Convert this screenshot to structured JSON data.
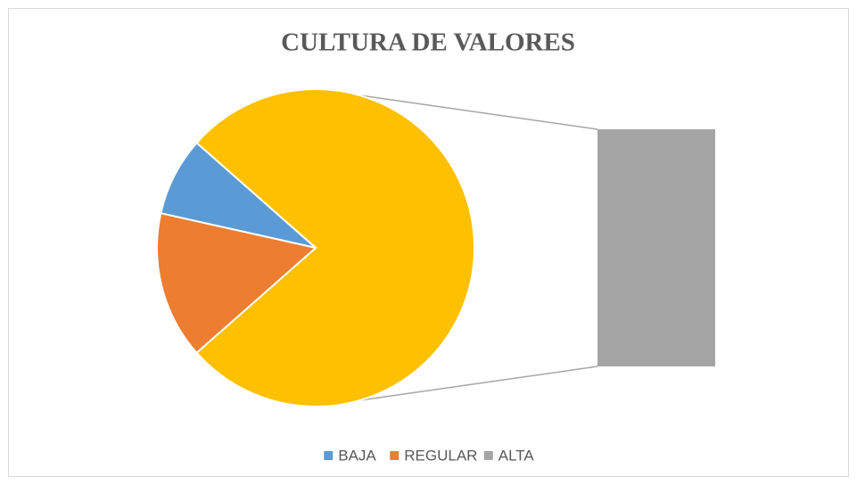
{
  "chart_data": {
    "type": "bar-of-pie",
    "title": "CULTURA DE VALORES",
    "categories": [
      "BAJA",
      "REGULAR",
      "ALTA"
    ],
    "values": [
      8,
      15,
      77
    ],
    "colors": [
      "#5b9bd5",
      "#ed7d31",
      "#a5a5a5"
    ],
    "other_color": "#ffc000",
    "legend": "bottom"
  }
}
